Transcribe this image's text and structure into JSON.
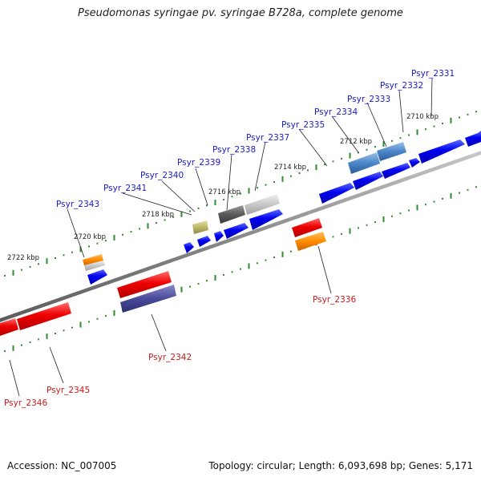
{
  "title": "Pseudomonas syringae pv. syringae B728a, complete genome",
  "footer": {
    "accession": "Accession: NC_007005",
    "summary": "Topology: circular; Length: 6,093,698 bp; Genes: 5,171"
  },
  "kbp_labels": [
    "2710 kbp",
    "2712 kbp",
    "2714 kbp",
    "2716 kbp",
    "2718 kbp",
    "2720 kbp",
    "2722 kbp"
  ],
  "genes_top": [
    "Psyr_2331",
    "Psyr_2332",
    "Psyr_2333",
    "Psyr_2334",
    "Psyr_2335",
    "Psyr_2337",
    "Psyr_2338",
    "Psyr_2339",
    "Psyr_2340",
    "Psyr_2341",
    "Psyr_2343"
  ],
  "genes_bottom": [
    "Psyr_2336",
    "Psyr_2342",
    "Psyr_2345",
    "Psyr_2346"
  ],
  "colors": {
    "forward_label": "#1a1acc",
    "reverse_label": "#cc1a1a",
    "backbone": "#8a8a8a",
    "tick": "#2e8b2e"
  }
}
